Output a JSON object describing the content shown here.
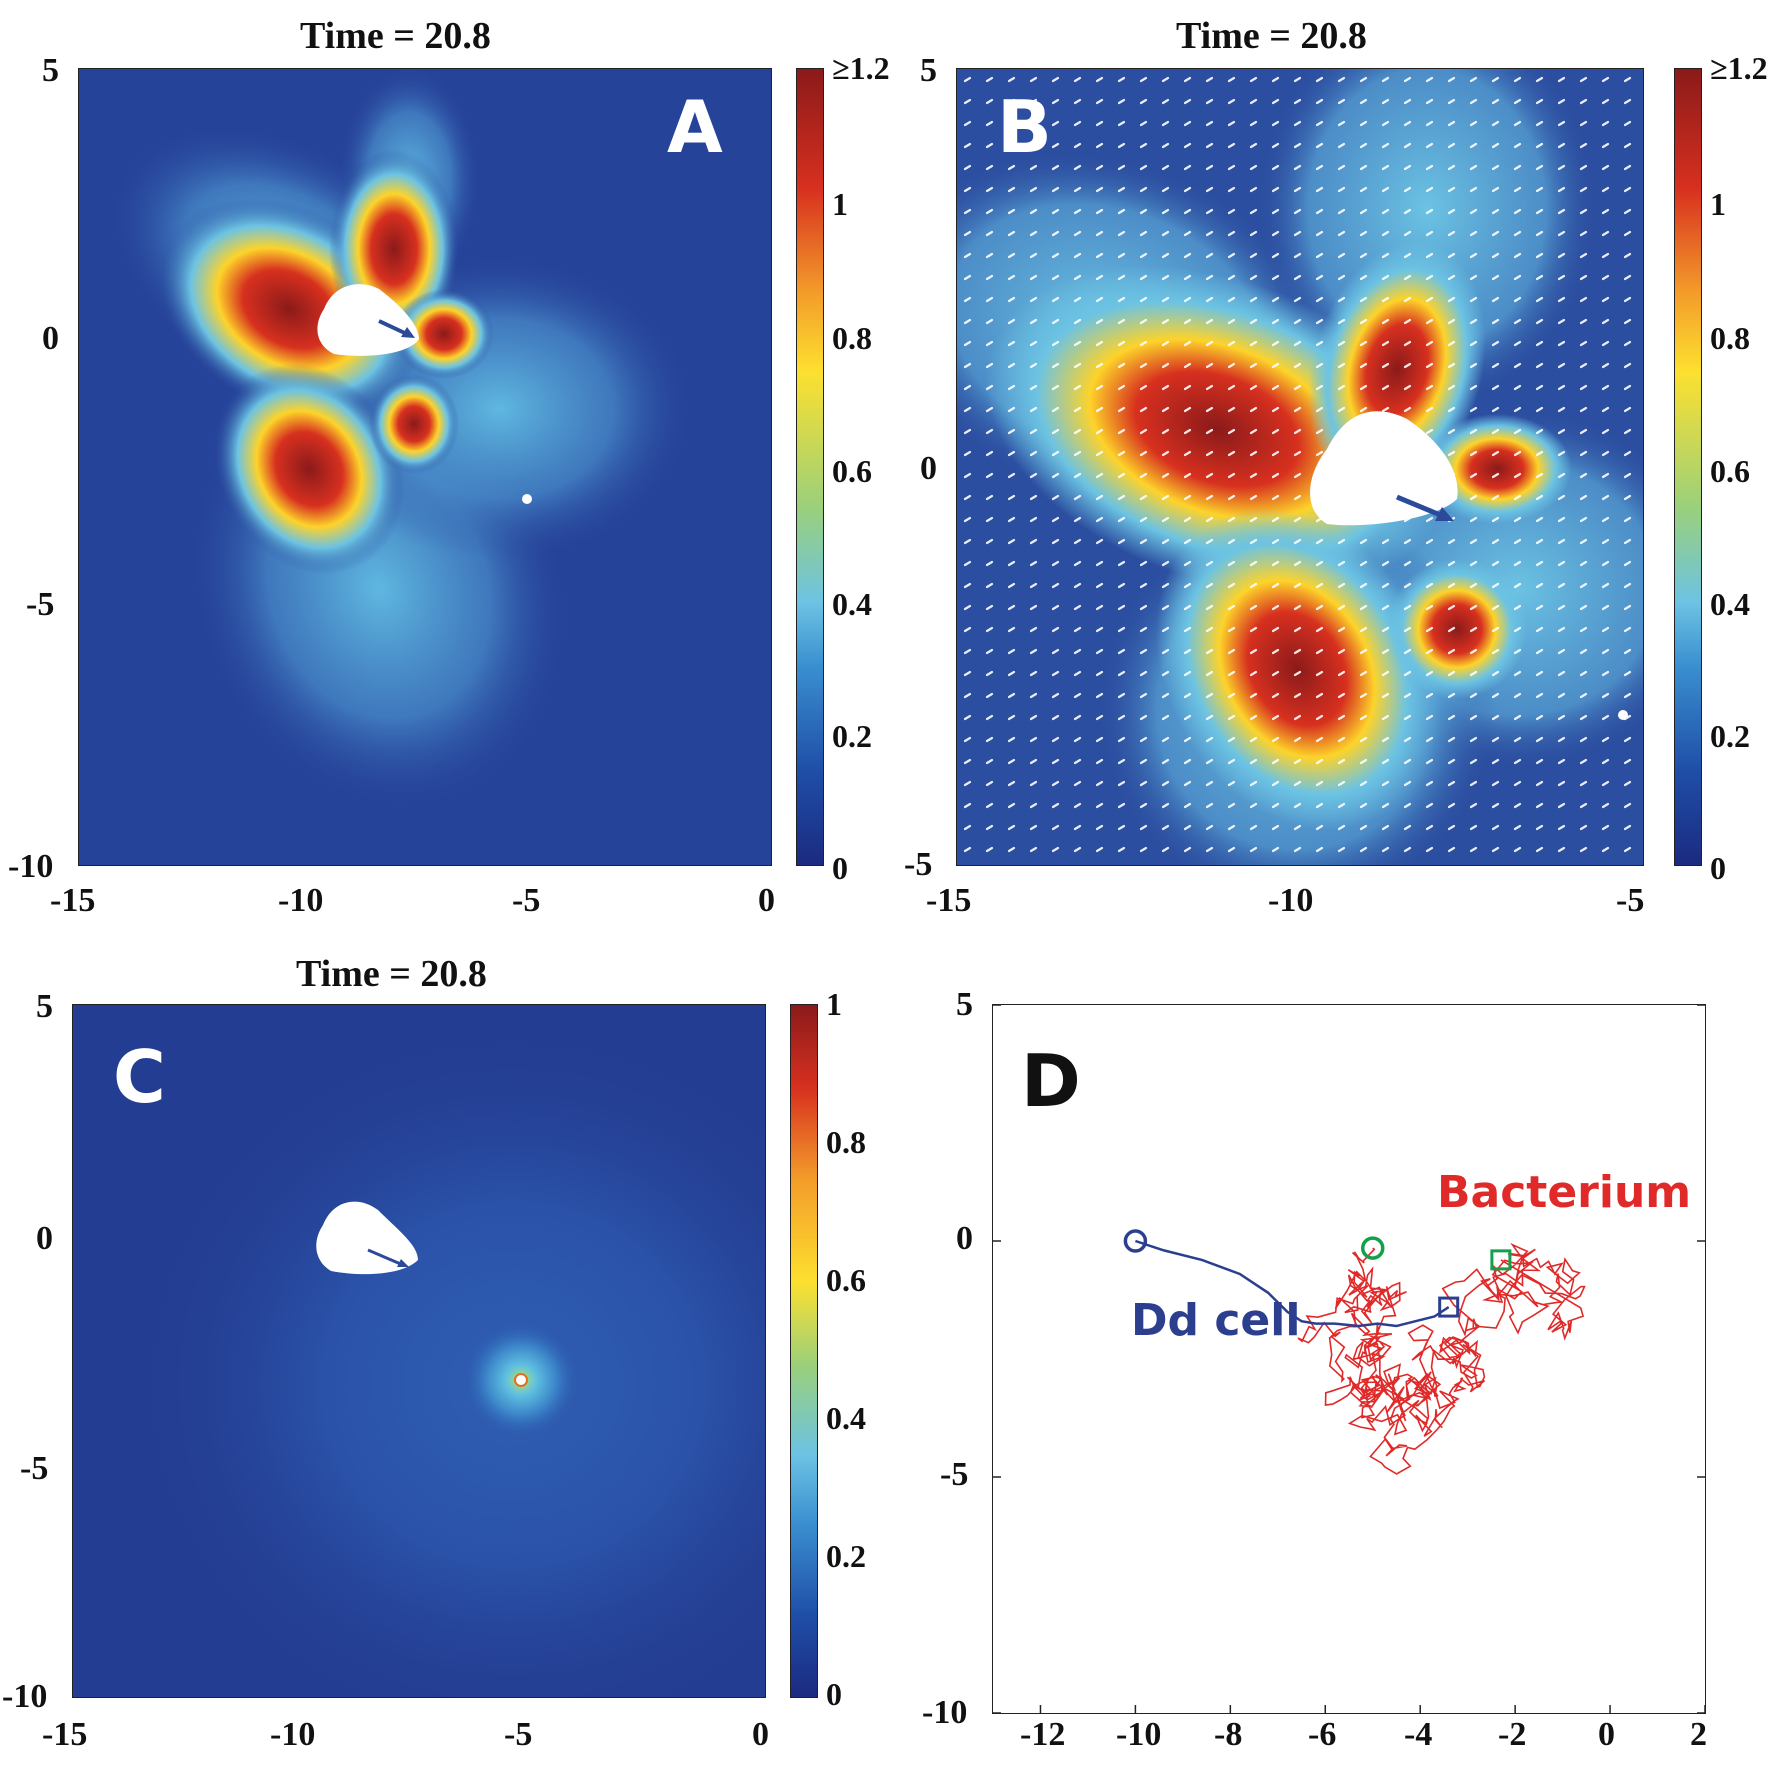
{
  "colors": {
    "jet_bg": "#1f3f94",
    "cell": "#ffffff",
    "cell_arrow": "#2b4a9a",
    "dd_trajectory": "#2b3f8e",
    "bacterium_trajectory": "#e02a2a",
    "start_marker_dd": "#2b3f8e",
    "start_marker_bac": "#14a04a",
    "end_marker_dd": "#2b3f8e",
    "end_marker_bac": "#14a04a"
  },
  "chart_data": [
    {
      "panel": "A",
      "type": "heatmap",
      "title": "Time = 20.8",
      "xlim": [
        -15,
        0
      ],
      "ylim": [
        -10,
        5
      ],
      "xticks": [
        "-15",
        "-10",
        "-5",
        "0"
      ],
      "yticks": [
        "5",
        "0",
        "-5",
        "-10"
      ],
      "colorbar": {
        "min": 0,
        "max": 1.2,
        "ticks": [
          "≥1.2",
          "1",
          "0.8",
          "0.6",
          "0.4",
          "0.2",
          "0"
        ]
      },
      "cell_center": [
        -8.7,
        -0.3
      ],
      "bacterium": [
        -5.2,
        -3.0
      ]
    },
    {
      "panel": "B",
      "type": "heatmap",
      "title": "Time = 20.8",
      "xlim": [
        -15,
        -5
      ],
      "ylim": [
        -5,
        5
      ],
      "xticks": [
        "-15",
        "-10",
        "-5"
      ],
      "yticks": [
        "5",
        "0",
        "-5"
      ],
      "colorbar": {
        "min": 0,
        "max": 1.2,
        "ticks": [
          "≥1.2",
          "1",
          "0.8",
          "0.6",
          "0.4",
          "0.2",
          "0"
        ]
      },
      "cell_center": [
        -8.7,
        -0.3
      ],
      "bacterium": [
        -5.2,
        -3.0
      ],
      "overlay": "velocity field arrows"
    },
    {
      "panel": "C",
      "type": "heatmap",
      "title": "Time = 20.8",
      "xlim": [
        -15,
        0
      ],
      "ylim": [
        -10,
        5
      ],
      "xticks": [
        "-15",
        "-10",
        "-5",
        "0"
      ],
      "yticks": [
        "5",
        "0",
        "-5",
        "-10"
      ],
      "colorbar": {
        "min": 0,
        "max": 1,
        "ticks": [
          "1",
          "0.8",
          "0.6",
          "0.4",
          "0.2",
          "0"
        ]
      },
      "cell_center": [
        -8.7,
        -0.3
      ],
      "bacterium": [
        -5.2,
        -3.0
      ]
    },
    {
      "panel": "D",
      "type": "line",
      "title": "",
      "xlim": [
        -13,
        2
      ],
      "ylim": [
        -10,
        5
      ],
      "xticks": [
        "-12",
        "-10",
        "-8",
        "-6",
        "-4",
        "-2",
        "0",
        "2"
      ],
      "yticks": [
        "5",
        "0",
        "-5",
        "-10"
      ],
      "series": [
        {
          "name": "Dd cell",
          "start": [
            -10,
            0
          ],
          "end": [
            -3.4,
            -1.4
          ],
          "x": [
            -10,
            -9.4,
            -8.6,
            -7.8,
            -7.2,
            -6.8,
            -6.5,
            -6.2,
            -5.8,
            -5.3,
            -4.9,
            -4.5,
            -4.1,
            -3.7,
            -3.4
          ],
          "y": [
            0,
            -0.2,
            -0.4,
            -0.7,
            -1.1,
            -1.5,
            -1.7,
            -1.75,
            -1.75,
            -1.8,
            -1.75,
            -1.8,
            -1.7,
            -1.6,
            -1.4
          ]
        },
        {
          "name": "Bacterium",
          "start": [
            -5.0,
            -0.15
          ],
          "end": [
            -2.3,
            -0.4
          ]
        }
      ],
      "labels": {
        "dd": "Dd cell",
        "bacterium": "Bacterium"
      }
    }
  ],
  "panels": {
    "a": {
      "title": "Time = 20.8",
      "letter": "A"
    },
    "b": {
      "title": "Time = 20.8",
      "letter": "B"
    },
    "c": {
      "title": "Time = 20.8",
      "letter": "C"
    },
    "d": {
      "letter": "D"
    }
  }
}
